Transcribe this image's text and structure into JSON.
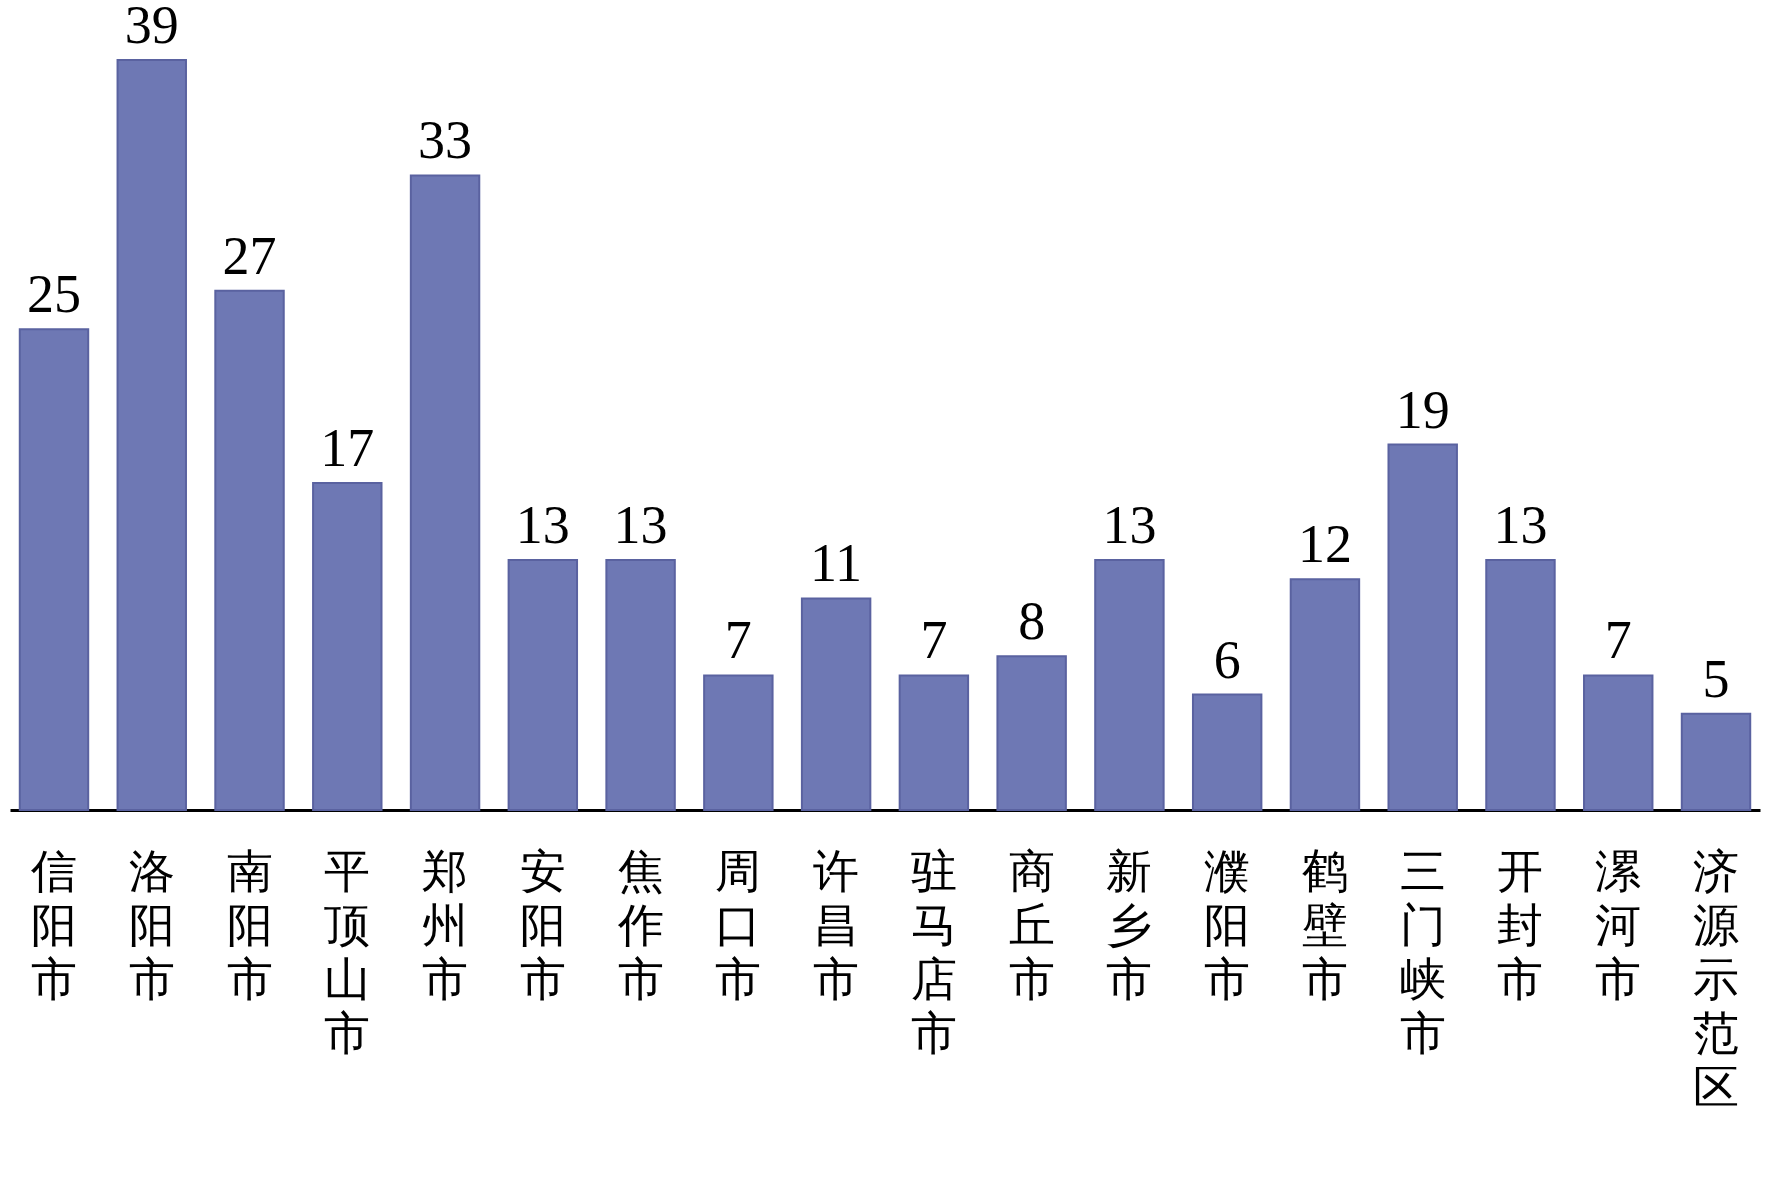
{
  "chart_data": {
    "type": "bar",
    "categories": [
      "信阳市",
      "洛阳市",
      "南阳市",
      "平顶山市",
      "郑州市",
      "安阳市",
      "焦作市",
      "周口市",
      "许昌市",
      "驻马店市",
      "商丘市",
      "新乡市",
      "濮阳市",
      "鹤壁市",
      "三门峡市",
      "开封市",
      "漯河市",
      "济源示范区"
    ],
    "values": [
      25,
      39,
      27,
      17,
      33,
      13,
      13,
      7,
      11,
      7,
      8,
      13,
      6,
      12,
      19,
      13,
      7,
      5
    ],
    "color": "#6e78b4",
    "data_labels": true,
    "tick_labels": "x"
  }
}
